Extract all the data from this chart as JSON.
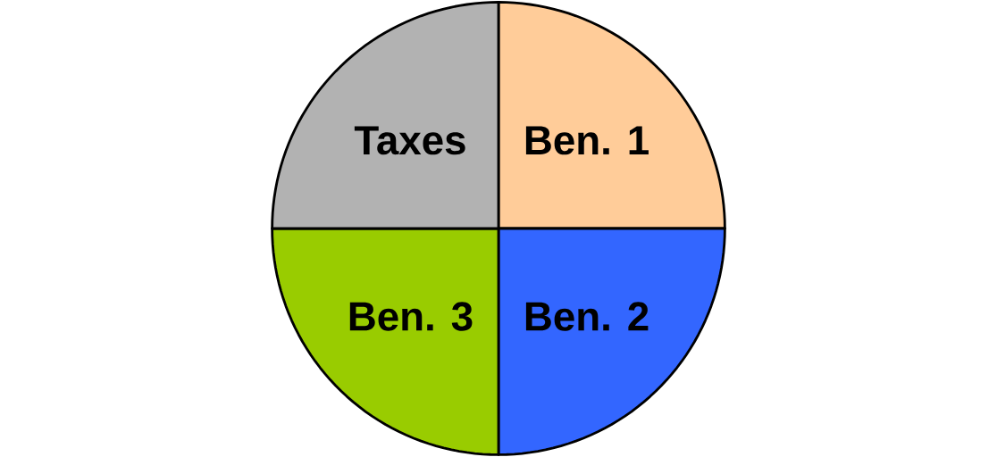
{
  "chart_data": {
    "type": "pie",
    "categories": [
      "Ben. 1",
      "Ben. 2",
      "Ben. 3",
      "Taxes"
    ],
    "values": [
      25,
      25,
      25,
      25
    ],
    "colors": [
      "#ffcc99",
      "#3366ff",
      "#99cc00",
      "#b2b2b2"
    ]
  }
}
